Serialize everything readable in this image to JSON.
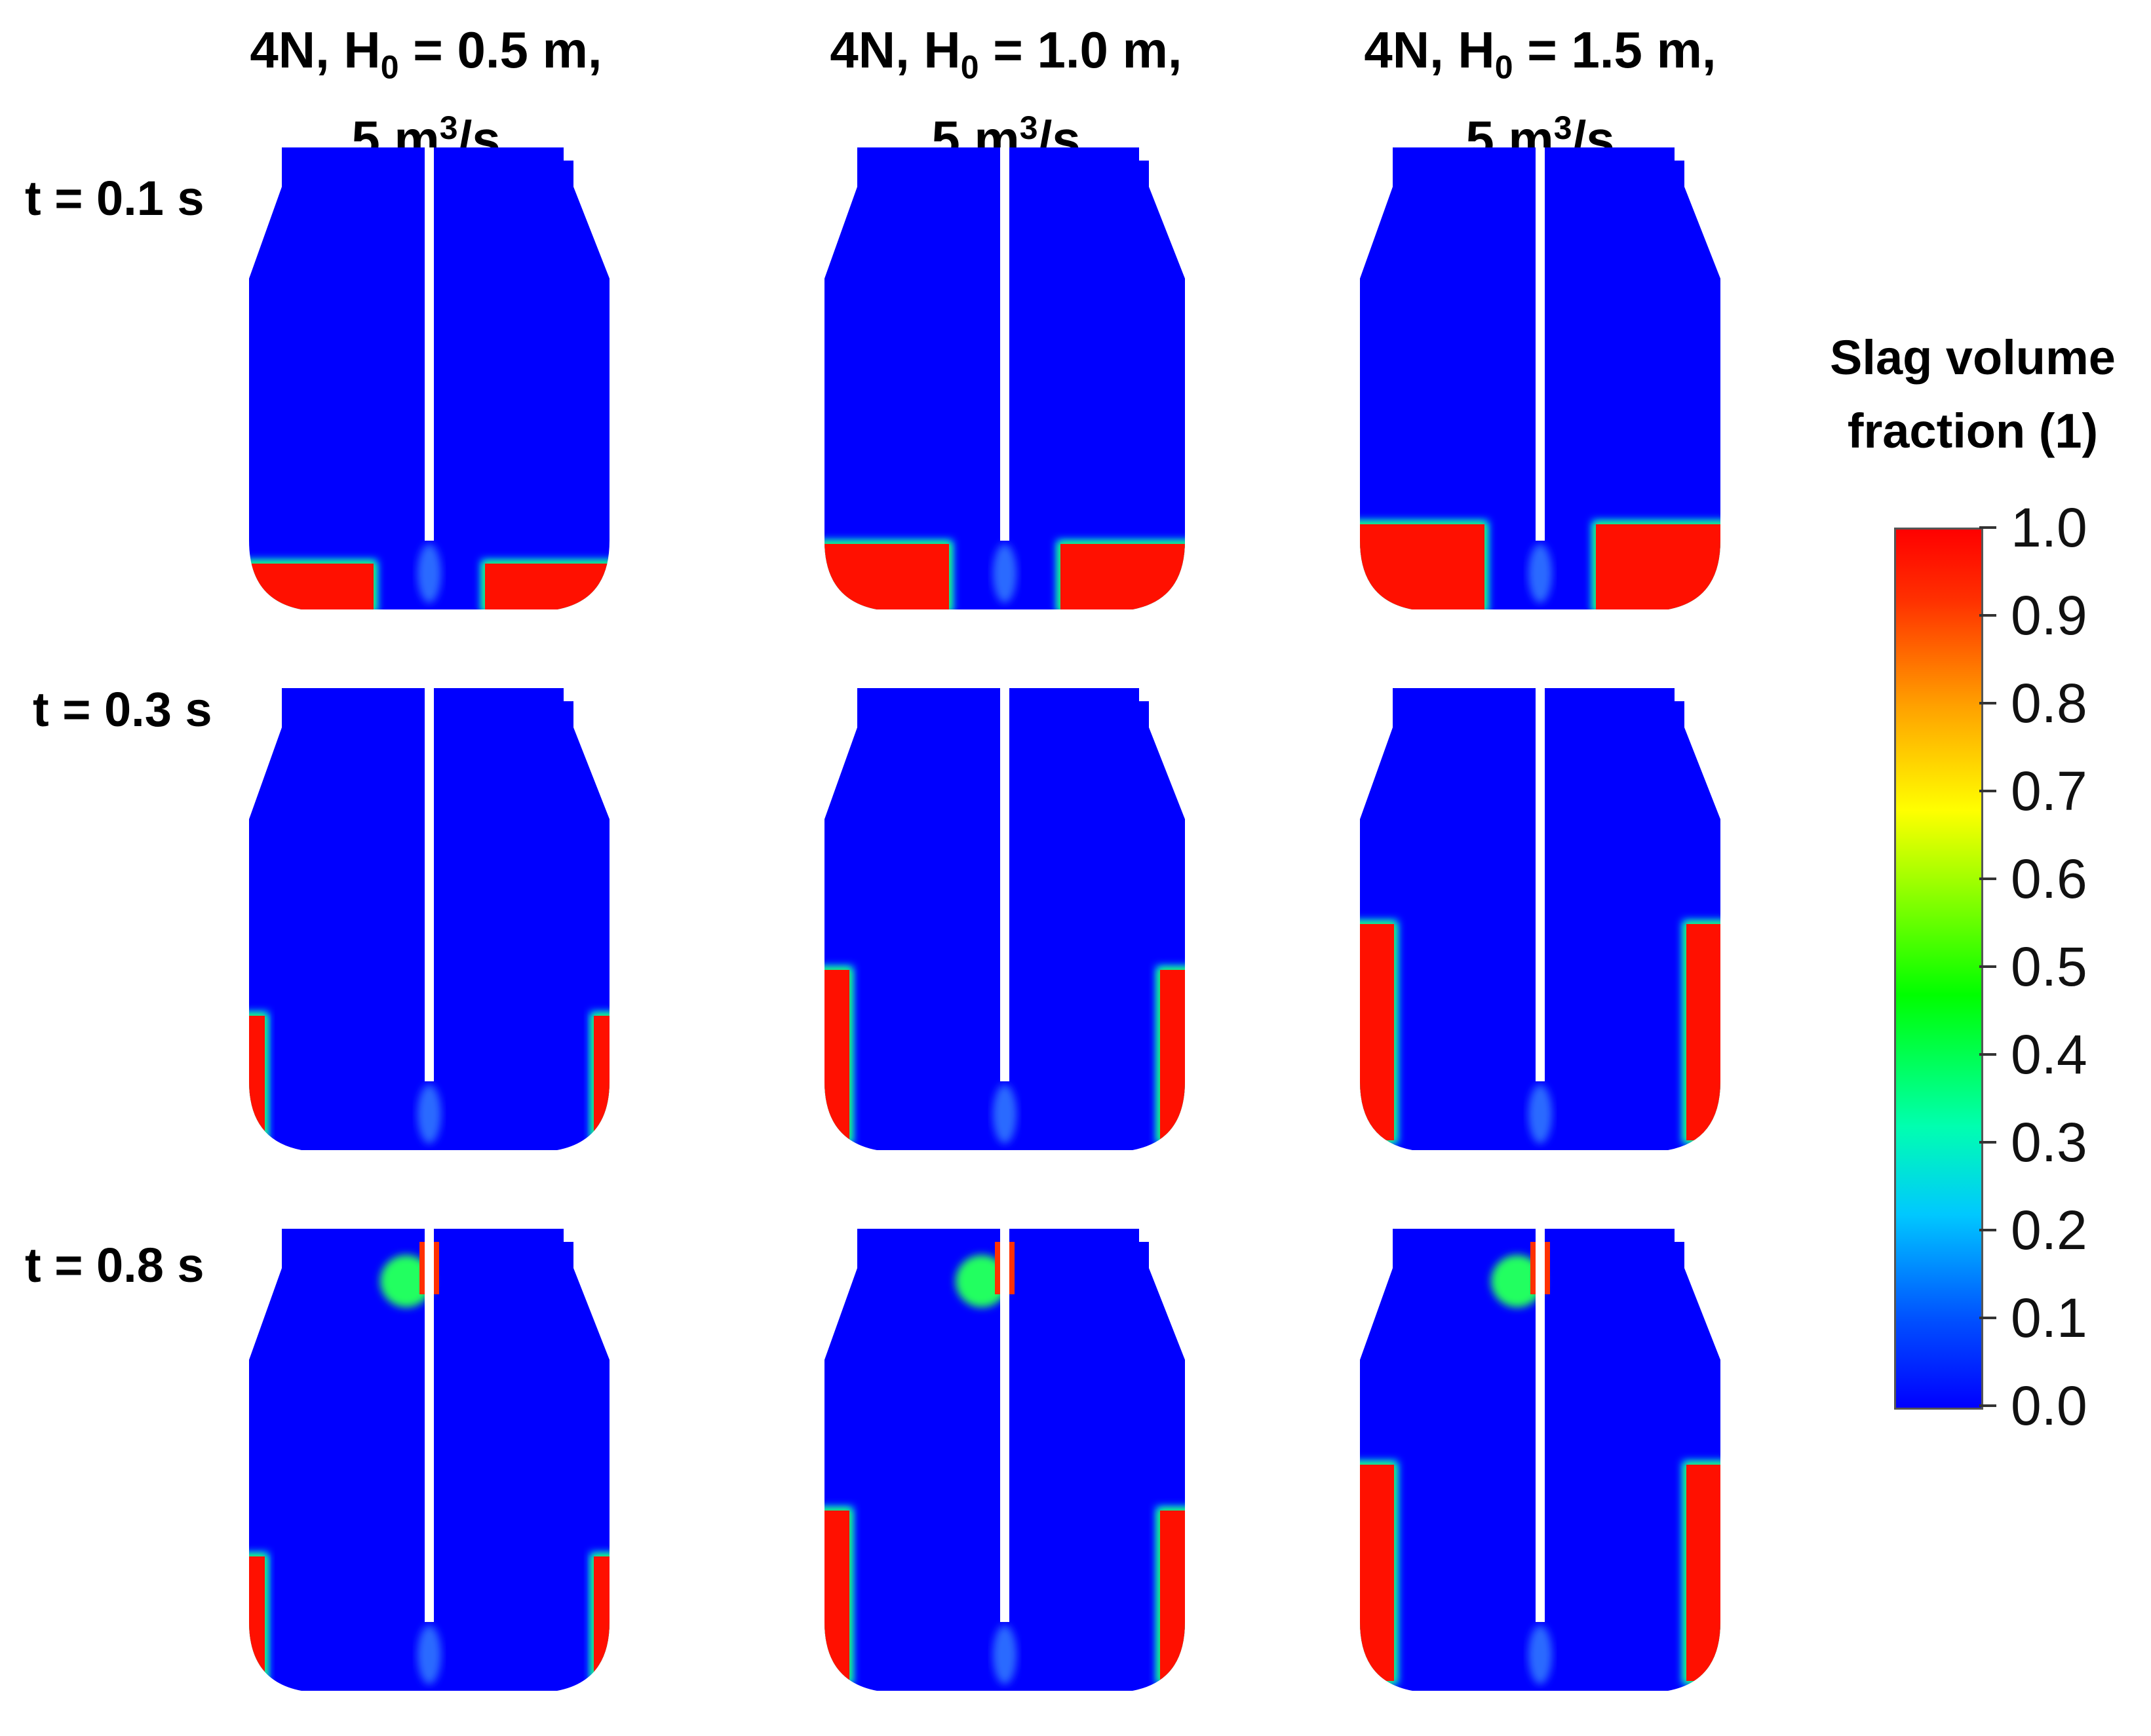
{
  "columns": [
    {
      "title_line1_pre": "4N, H",
      "sub": "0",
      "title_line1_post": " = 0.5 m,",
      "title_line2_pre": "5 m",
      "sup": "3",
      "title_line2_post": "/s",
      "fill": 0.5
    },
    {
      "title_line1_pre": "4N, H",
      "sub": "0",
      "title_line1_post": " = 1.0 m,",
      "title_line2_pre": "5 m",
      "sup": "3",
      "title_line2_post": "/s",
      "fill": 1.0
    },
    {
      "title_line1_pre": "4N, H",
      "sub": "0",
      "title_line1_post": " = 1.5 m,",
      "title_line2_pre": "5 m",
      "sup": "3",
      "title_line2_post": "/s",
      "fill": 1.5
    }
  ],
  "rows": [
    {
      "label": "t = 0.1 s"
    },
    {
      "label": "t = 0.3 s"
    },
    {
      "label": "t = 0.8 s"
    }
  ],
  "colorbar": {
    "title_line1": "Slag volume",
    "title_line2": "fraction (1)",
    "ticks": [
      "1.0",
      "0.9",
      "0.8",
      "0.7",
      "0.6",
      "0.5",
      "0.4",
      "0.3",
      "0.2",
      "0.1",
      "0.0"
    ],
    "colors": {
      "low": "#0000ff",
      "high": "#ff0000",
      "mid": "#00ff00"
    }
  }
}
